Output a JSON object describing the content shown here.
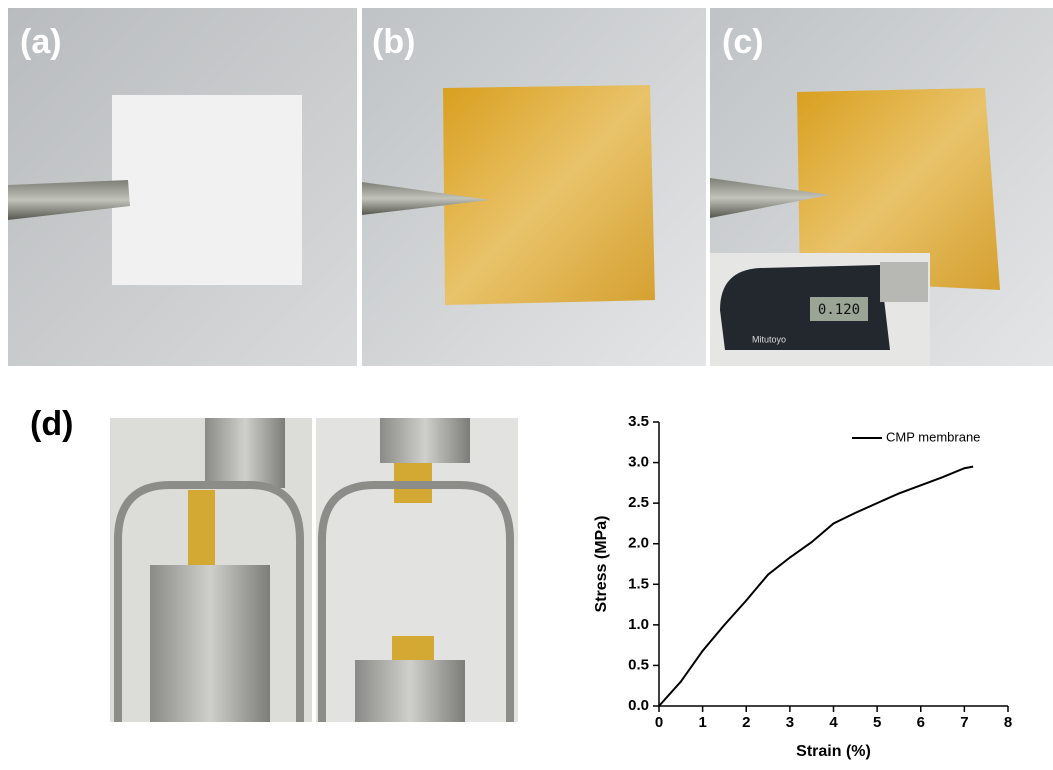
{
  "panels": {
    "a": "(a)",
    "b": "(b)",
    "c": "(c)",
    "d": "(d)"
  },
  "micrometer": {
    "reading": "0.120",
    "brand": "Mitutoyo"
  },
  "chart_data": {
    "type": "line",
    "x_label": "Strain (%)",
    "y_label": "Stress (MPa)",
    "x": [
      0,
      0.5,
      1,
      1.5,
      2,
      2.5,
      3,
      3.5,
      4,
      4.5,
      5,
      5.5,
      6,
      6.5,
      7,
      7.2
    ],
    "series": [
      {
        "name": "CMP membrane",
        "color": "#000000",
        "values": [
          0,
          0.3,
          0.68,
          1.0,
          1.3,
          1.62,
          1.83,
          2.02,
          2.25,
          2.38,
          2.5,
          2.62,
          2.72,
          2.82,
          2.93,
          2.95
        ]
      }
    ],
    "xlim": [
      0,
      8
    ],
    "xticks": [
      0,
      1,
      2,
      3,
      4,
      5,
      6,
      7,
      8
    ],
    "ylim": [
      0,
      3.5
    ],
    "yticks": [
      {
        "value": 0,
        "label": "0.0"
      },
      0.5,
      {
        "value": 1,
        "label": "1.0"
      },
      1.5,
      {
        "value": 2,
        "label": "2.0"
      },
      2.5,
      {
        "value": 3,
        "label": "3.0"
      },
      3.5
    ],
    "legend": "upper right"
  }
}
